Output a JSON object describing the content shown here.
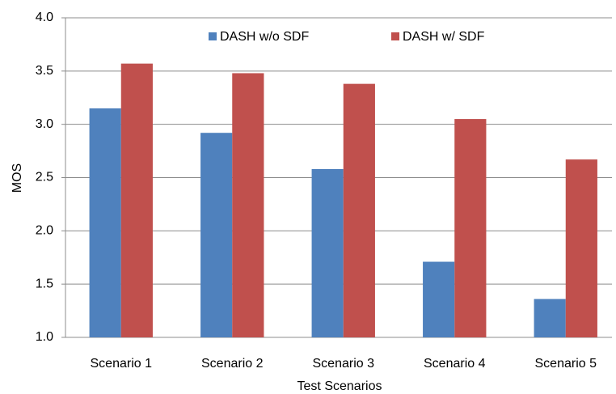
{
  "chart_data": {
    "type": "bar",
    "ylabel": "MOS",
    "xlabel": "Test Scenarios",
    "categories": [
      "Scenario 1",
      "Scenario 2",
      "Scenario 3",
      "Scenario 4",
      "Scenario 5"
    ],
    "series": [
      {
        "name": "DASH w/o SDF",
        "color": "#4f81bd",
        "values": [
          3.15,
          2.92,
          2.58,
          1.71,
          1.36
        ]
      },
      {
        "name": "DASH w/ SDF",
        "color": "#c0504d",
        "values": [
          3.57,
          3.48,
          3.38,
          3.05,
          2.67
        ]
      }
    ],
    "ylim": [
      1,
      4
    ],
    "yticks": [
      {
        "value": 1,
        "label": "1.0"
      },
      1.5,
      {
        "value": 2,
        "label": "2.0"
      },
      2.5,
      {
        "value": 3,
        "label": "3.0"
      },
      3.5,
      {
        "value": 4,
        "label": "4.0"
      }
    ],
    "grid": true,
    "legend": "top"
  }
}
